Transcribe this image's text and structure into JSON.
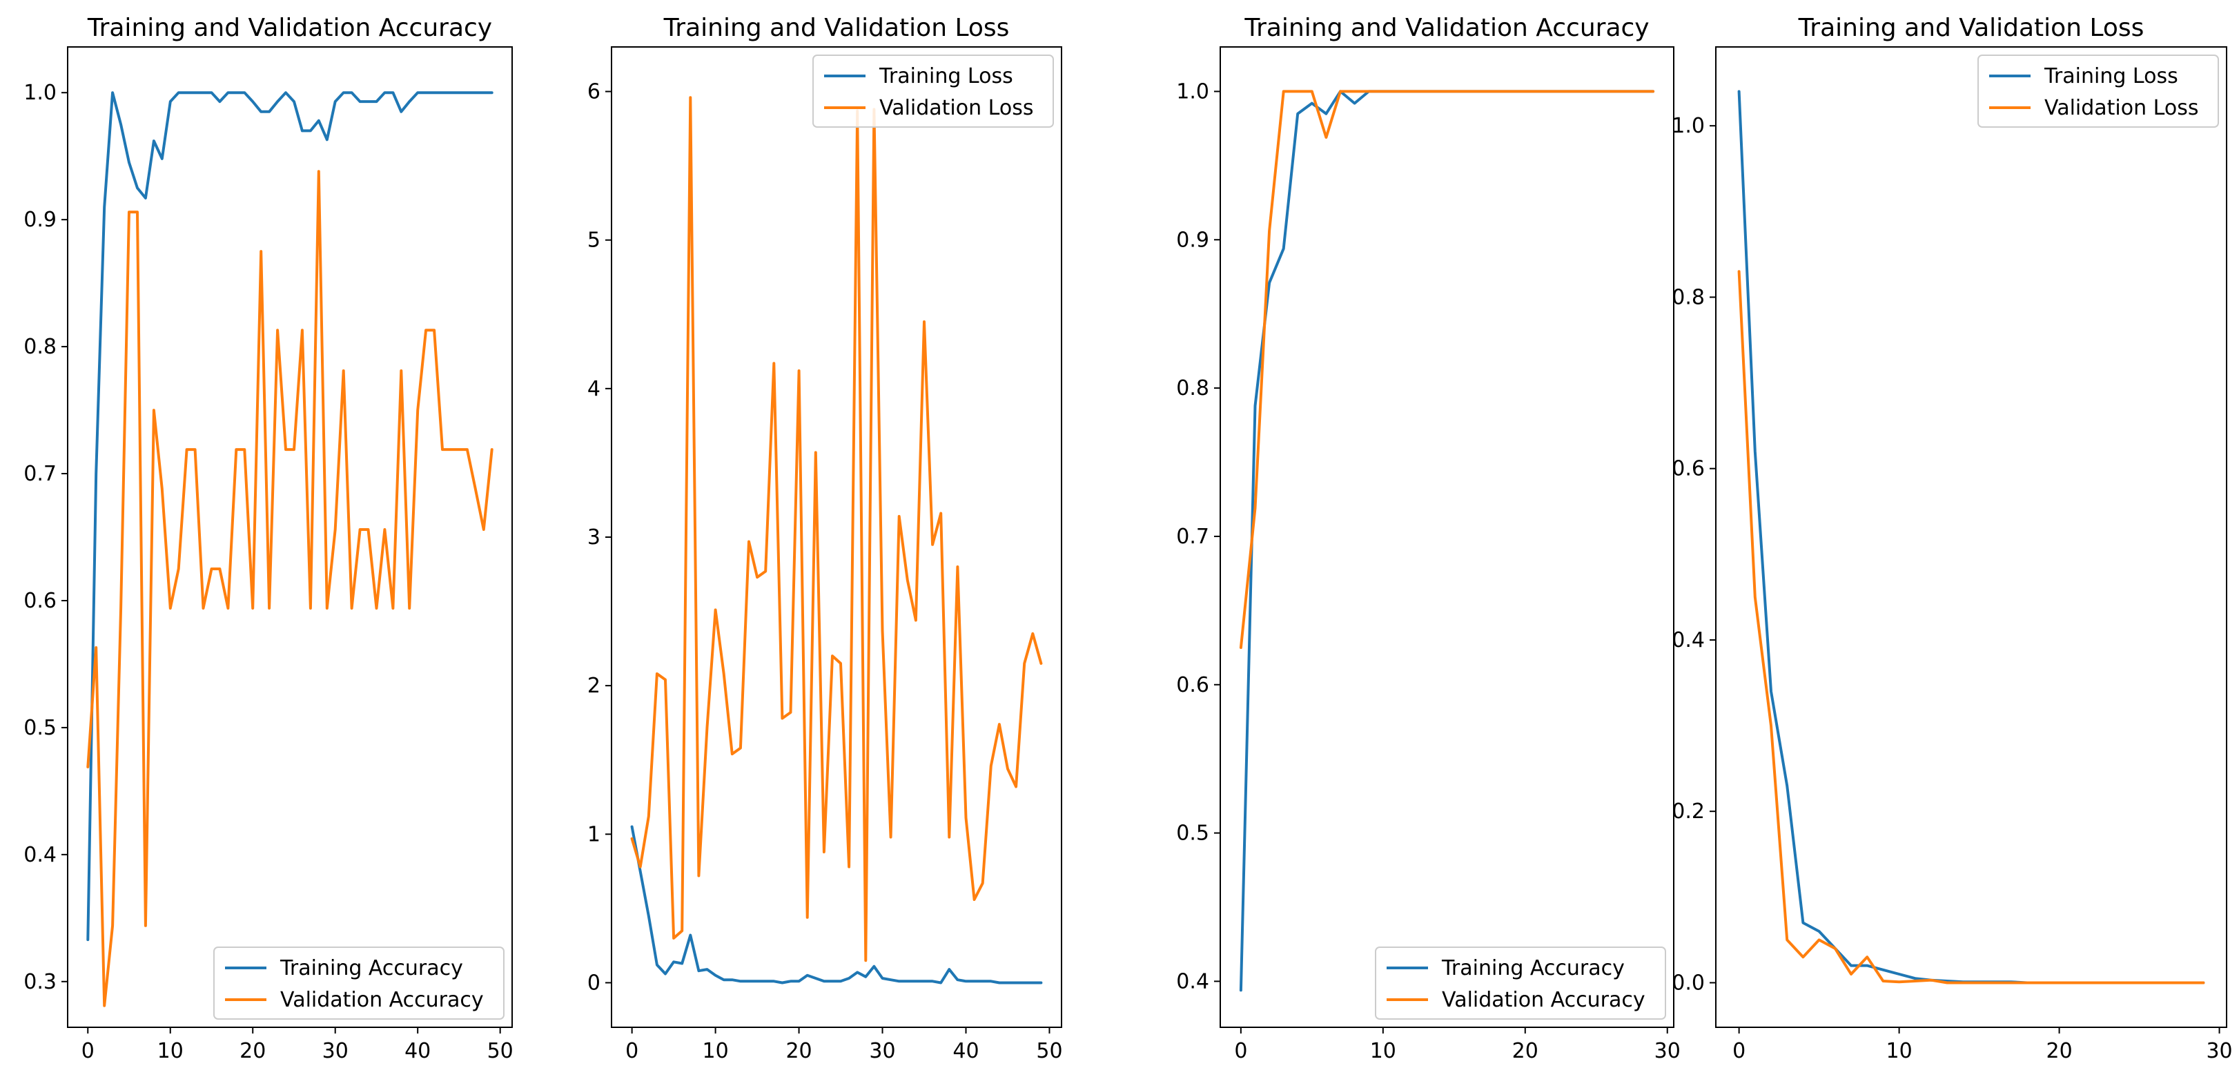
{
  "chart_data": [
    {
      "type": "line",
      "title": "Training and Validation Accuracy",
      "xlabel": "",
      "ylabel": "",
      "xlim": [
        -2.45,
        51.45
      ],
      "ylim": [
        0.264,
        1.036
      ],
      "xticks": [
        0,
        10,
        20,
        30,
        40,
        50
      ],
      "yticks": [
        0.3,
        0.4,
        0.5,
        0.6,
        0.7,
        0.8,
        0.9,
        1.0
      ],
      "ytick_labels": [
        "0.3",
        "0.4",
        "0.5",
        "0.6",
        "0.7",
        "0.8",
        "0.9",
        "1.0"
      ],
      "legend": "lower-right",
      "x": [
        0,
        1,
        2,
        3,
        4,
        5,
        6,
        7,
        8,
        9,
        10,
        11,
        12,
        13,
        14,
        15,
        16,
        17,
        18,
        19,
        20,
        21,
        22,
        23,
        24,
        25,
        26,
        27,
        28,
        29,
        30,
        31,
        32,
        33,
        34,
        35,
        36,
        37,
        38,
        39,
        40,
        41,
        42,
        43,
        44,
        45,
        46,
        47,
        48,
        49
      ],
      "series": [
        {
          "name": "Training Accuracy",
          "color": "#1f77b4",
          "values": [
            0.333,
            0.7,
            0.91,
            1.0,
            0.975,
            0.945,
            0.925,
            0.917,
            0.962,
            0.948,
            0.993,
            1.0,
            1.0,
            1.0,
            1.0,
            1.0,
            0.993,
            1.0,
            1.0,
            1.0,
            0.993,
            0.985,
            0.985,
            0.993,
            1.0,
            0.993,
            0.97,
            0.97,
            0.978,
            0.963,
            0.993,
            1.0,
            1.0,
            0.993,
            0.993,
            0.993,
            1.0,
            1.0,
            0.985,
            0.993,
            1.0,
            1.0,
            1.0,
            1.0,
            1.0,
            1.0,
            1.0,
            1.0,
            1.0,
            1.0
          ]
        },
        {
          "name": "Validation Accuracy",
          "color": "#ff7f0e",
          "values": [
            0.469,
            0.563,
            0.281,
            0.344,
            0.594,
            0.906,
            0.906,
            0.344,
            0.75,
            0.688,
            0.594,
            0.625,
            0.719,
            0.719,
            0.594,
            0.625,
            0.625,
            0.594,
            0.719,
            0.719,
            0.594,
            0.875,
            0.594,
            0.813,
            0.719,
            0.719,
            0.813,
            0.594,
            0.938,
            0.594,
            0.656,
            0.781,
            0.594,
            0.656,
            0.656,
            0.594,
            0.656,
            0.594,
            0.781,
            0.594,
            0.75,
            0.813,
            0.813,
            0.719,
            0.719,
            0.719,
            0.719,
            0.688,
            0.656,
            0.719
          ]
        }
      ]
    },
    {
      "type": "line",
      "title": "Training and Validation Loss",
      "xlabel": "",
      "ylabel": "",
      "xlim": [
        -2.45,
        51.45
      ],
      "ylim": [
        -0.3,
        6.3
      ],
      "xticks": [
        0,
        10,
        20,
        30,
        40,
        50
      ],
      "yticks": [
        0,
        1,
        2,
        3,
        4,
        5,
        6
      ],
      "ytick_labels": [
        "0",
        "1",
        "2",
        "3",
        "4",
        "5",
        "6"
      ],
      "legend": "top-right",
      "x": [
        0,
        1,
        2,
        3,
        4,
        5,
        6,
        7,
        8,
        9,
        10,
        11,
        12,
        13,
        14,
        15,
        16,
        17,
        18,
        19,
        20,
        21,
        22,
        23,
        24,
        25,
        26,
        27,
        28,
        29,
        30,
        31,
        32,
        33,
        34,
        35,
        36,
        37,
        38,
        39,
        40,
        41,
        42,
        43,
        44,
        45,
        46,
        47,
        48,
        49
      ],
      "series": [
        {
          "name": "Training Loss",
          "color": "#1f77b4",
          "values": [
            1.05,
            0.75,
            0.45,
            0.12,
            0.06,
            0.14,
            0.13,
            0.32,
            0.08,
            0.09,
            0.05,
            0.02,
            0.02,
            0.01,
            0.01,
            0.01,
            0.01,
            0.01,
            0.0,
            0.01,
            0.01,
            0.05,
            0.03,
            0.01,
            0.01,
            0.01,
            0.03,
            0.07,
            0.04,
            0.11,
            0.03,
            0.02,
            0.01,
            0.01,
            0.01,
            0.01,
            0.01,
            0.0,
            0.09,
            0.02,
            0.01,
            0.01,
            0.01,
            0.01,
            0.0,
            0.0,
            0.0,
            0.0,
            0.0,
            0.0
          ]
        },
        {
          "name": "Validation Loss",
          "color": "#ff7f0e",
          "values": [
            0.97,
            0.78,
            1.12,
            2.08,
            2.04,
            0.3,
            0.35,
            5.96,
            0.72,
            1.72,
            2.51,
            2.08,
            1.54,
            1.58,
            2.97,
            2.73,
            2.77,
            4.17,
            1.78,
            1.82,
            4.12,
            0.44,
            3.57,
            0.88,
            2.2,
            2.15,
            0.78,
            5.87,
            0.15,
            5.88,
            2.37,
            0.98,
            3.14,
            2.71,
            2.44,
            4.45,
            2.95,
            3.16,
            0.98,
            2.8,
            1.11,
            0.56,
            0.67,
            1.46,
            1.74,
            1.44,
            1.32,
            2.15,
            2.35,
            2.15
          ]
        }
      ]
    },
    {
      "type": "line",
      "title": "Training and Validation Accuracy",
      "xlabel": "",
      "ylabel": "",
      "xlim": [
        -1.45,
        30.45
      ],
      "ylim": [
        0.369,
        1.03
      ],
      "xticks": [
        0,
        10,
        20,
        30
      ],
      "yticks": [
        0.4,
        0.5,
        0.6,
        0.7,
        0.8,
        0.9,
        1.0
      ],
      "ytick_labels": [
        "0.4",
        "0.5",
        "0.6",
        "0.7",
        "0.8",
        "0.9",
        "1.0"
      ],
      "legend": "lower-right",
      "x": [
        0,
        1,
        2,
        3,
        4,
        5,
        6,
        7,
        8,
        9,
        10,
        11,
        12,
        13,
        14,
        15,
        16,
        17,
        18,
        19,
        20,
        21,
        22,
        23,
        24,
        25,
        26,
        27,
        28,
        29
      ],
      "series": [
        {
          "name": "Training Accuracy",
          "color": "#1f77b4",
          "values": [
            0.394,
            0.788,
            0.871,
            0.894,
            0.985,
            0.992,
            0.985,
            1.0,
            0.992,
            1.0,
            1.0,
            1.0,
            1.0,
            1.0,
            1.0,
            1.0,
            1.0,
            1.0,
            1.0,
            1.0,
            1.0,
            1.0,
            1.0,
            1.0,
            1.0,
            1.0,
            1.0,
            1.0,
            1.0,
            1.0
          ]
        },
        {
          "name": "Validation Accuracy",
          "color": "#ff7f0e",
          "values": [
            0.625,
            0.719,
            0.906,
            1.0,
            1.0,
            1.0,
            0.969,
            1.0,
            1.0,
            1.0,
            1.0,
            1.0,
            1.0,
            1.0,
            1.0,
            1.0,
            1.0,
            1.0,
            1.0,
            1.0,
            1.0,
            1.0,
            1.0,
            1.0,
            1.0,
            1.0,
            1.0,
            1.0,
            1.0,
            1.0
          ]
        }
      ]
    },
    {
      "type": "line",
      "title": "Training and Validation Loss",
      "xlabel": "",
      "ylabel": "",
      "xlim": [
        -1.45,
        30.45
      ],
      "ylim": [
        -0.052,
        1.092
      ],
      "xticks": [
        0,
        10,
        20,
        30
      ],
      "yticks": [
        0.0,
        0.2,
        0.4,
        0.6,
        0.8,
        1.0
      ],
      "ytick_labels": [
        "0.0",
        "0.2",
        "0.4",
        "0.6",
        "0.8",
        "1.0"
      ],
      "legend": "top-right",
      "x": [
        0,
        1,
        2,
        3,
        4,
        5,
        6,
        7,
        8,
        9,
        10,
        11,
        12,
        13,
        14,
        15,
        16,
        17,
        18,
        19,
        20,
        21,
        22,
        23,
        24,
        25,
        26,
        27,
        28,
        29
      ],
      "series": [
        {
          "name": "Training Loss",
          "color": "#1f77b4",
          "values": [
            1.04,
            0.62,
            0.34,
            0.23,
            0.07,
            0.06,
            0.04,
            0.02,
            0.02,
            0.015,
            0.01,
            0.005,
            0.003,
            0.002,
            0.001,
            0.001,
            0.001,
            0.001,
            0.0,
            0.0,
            0.0,
            0.0,
            0.0,
            0.0,
            0.0,
            0.0,
            0.0,
            0.0,
            0.0,
            0.0
          ]
        },
        {
          "name": "Validation Loss",
          "color": "#ff7f0e",
          "values": [
            0.83,
            0.45,
            0.3,
            0.05,
            0.03,
            0.05,
            0.04,
            0.01,
            0.03,
            0.002,
            0.001,
            0.002,
            0.003,
            0.0,
            0.0,
            0.0,
            0.0,
            0.0,
            0.0,
            0.0,
            0.0,
            0.0,
            0.0,
            0.0,
            0.0,
            0.0,
            0.0,
            0.0,
            0.0,
            0.0
          ]
        }
      ]
    }
  ]
}
